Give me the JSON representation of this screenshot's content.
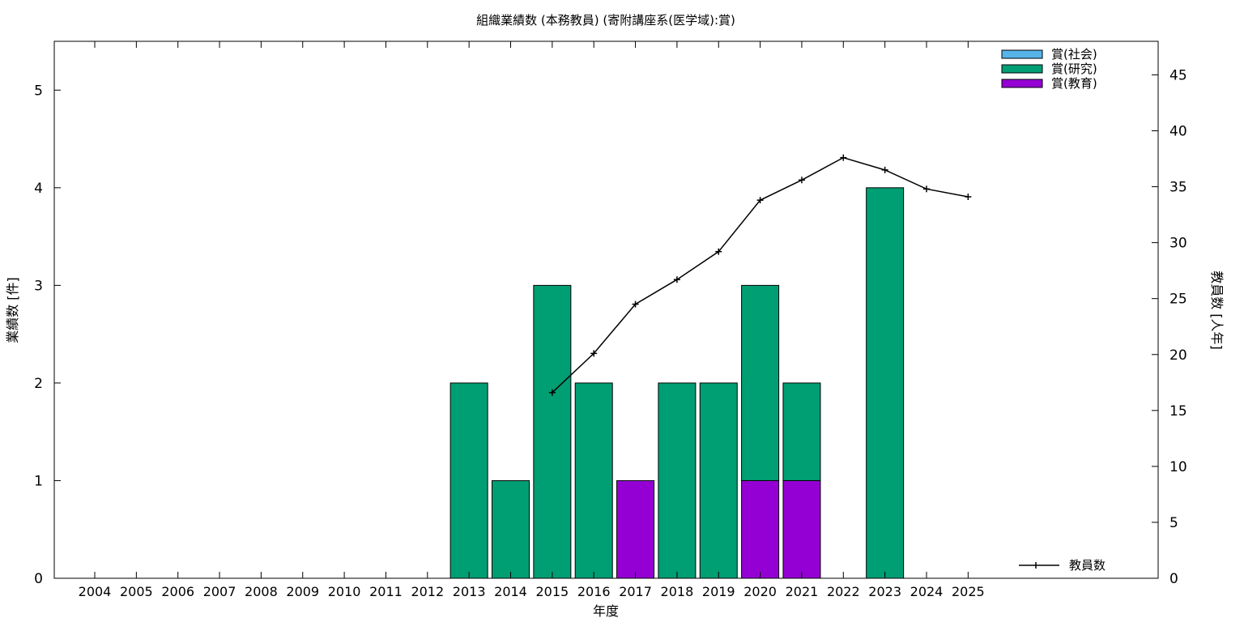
{
  "chart_data": {
    "type": "bar",
    "stacked": true,
    "title": "組織業績数 (本務教員) (寄附講座系(医学域):賞)",
    "xlabel": "年度",
    "ylabel": "業績数 [件]",
    "y2label": "教員数 [人年]",
    "categories": [
      "2004",
      "2005",
      "2006",
      "2007",
      "2008",
      "2009",
      "2010",
      "2011",
      "2012",
      "2013",
      "2014",
      "2015",
      "2016",
      "2017",
      "2018",
      "2019",
      "2020",
      "2021",
      "2022",
      "2023",
      "2024",
      "2025"
    ],
    "ylim": [
      0,
      5.5
    ],
    "yticks": [
      0,
      1,
      2,
      3,
      4,
      5
    ],
    "y2lim": [
      0,
      48
    ],
    "y2ticks": [
      0,
      5,
      10,
      15,
      20,
      25,
      30,
      35,
      40,
      45
    ],
    "grid": false,
    "legend_position": "top-right",
    "series": [
      {
        "name": "賞(社会)",
        "color": "#56b4e9",
        "values": [
          0,
          0,
          0,
          0,
          0,
          0,
          0,
          0,
          0,
          0,
          0,
          0,
          0,
          0,
          0,
          0,
          0,
          0,
          0,
          0,
          0,
          0
        ]
      },
      {
        "name": "賞(研究)",
        "color": "#009e73",
        "values": [
          0,
          0,
          0,
          0,
          0,
          0,
          0,
          0,
          0,
          2,
          1,
          3,
          2,
          0,
          2,
          2,
          2,
          1,
          0,
          4,
          0,
          0
        ]
      },
      {
        "name": "賞(教育)",
        "color": "#9400d3",
        "values": [
          0,
          0,
          0,
          0,
          0,
          0,
          0,
          0,
          0,
          0,
          0,
          0,
          0,
          1,
          0,
          0,
          1,
          1,
          0,
          0,
          0,
          0
        ]
      }
    ],
    "line_series": {
      "name": "教員数",
      "axis": "right",
      "color": "#000000",
      "legend_position": "bottom-right",
      "x": [
        "2015",
        "2016",
        "2017",
        "2018",
        "2019",
        "2020",
        "2021",
        "2022",
        "2023",
        "2024",
        "2025"
      ],
      "values": [
        16.6,
        20.1,
        24.5,
        26.7,
        29.2,
        33.8,
        35.6,
        37.6,
        36.5,
        34.8,
        34.1
      ]
    }
  }
}
